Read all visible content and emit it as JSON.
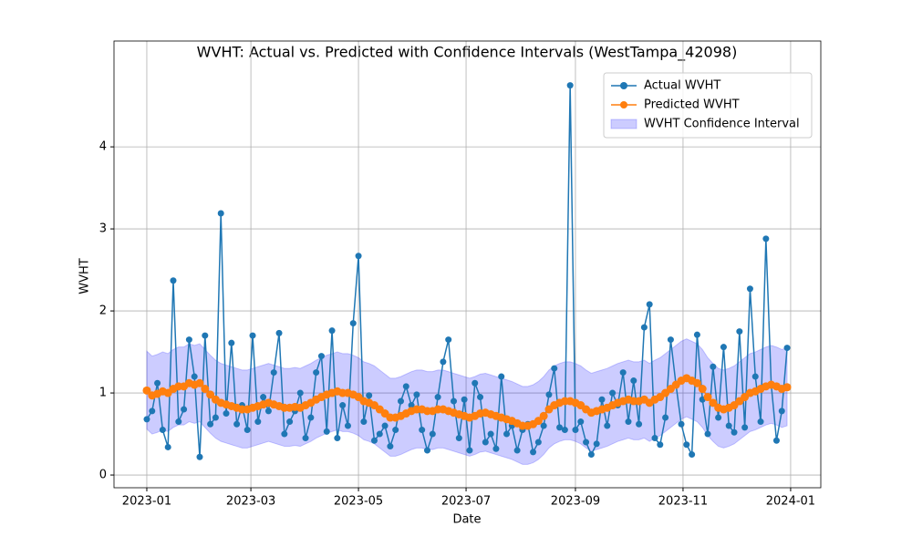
{
  "chart_data": {
    "type": "line",
    "title": "WVHT: Actual vs. Predicted with Confidence Intervals (WestTampa_42098)",
    "xlabel": "Date",
    "ylabel": "WVHT",
    "grid": true,
    "legend": "upper right",
    "xlim": [
      -18.6,
      382.1
    ],
    "ylim": [
      -0.155,
      5.29
    ],
    "xticks": [
      {
        "value": 0,
        "label": "2023-01"
      },
      {
        "value": 59,
        "label": "2023-03"
      },
      {
        "value": 120,
        "label": "2023-05"
      },
      {
        "value": 181,
        "label": "2023-07"
      },
      {
        "value": 243,
        "label": "2023-09"
      },
      {
        "value": 304,
        "label": "2023-11"
      },
      {
        "value": 365,
        "label": "2024-01"
      }
    ],
    "yticks": [
      0,
      1,
      2,
      3,
      4
    ],
    "x": [
      0,
      3,
      6,
      9,
      12,
      15,
      18,
      21,
      24,
      27,
      30,
      33,
      36,
      39,
      42,
      45,
      48,
      51,
      54,
      57,
      60,
      63,
      66,
      69,
      72,
      75,
      78,
      81,
      84,
      87,
      90,
      93,
      96,
      99,
      102,
      105,
      108,
      111,
      114,
      117,
      120,
      123,
      126,
      129,
      132,
      135,
      138,
      141,
      144,
      147,
      150,
      153,
      156,
      159,
      162,
      165,
      168,
      171,
      174,
      177,
      180,
      183,
      186,
      189,
      192,
      195,
      198,
      201,
      204,
      207,
      210,
      213,
      216,
      219,
      222,
      225,
      228,
      231,
      234,
      237,
      240,
      243,
      246,
      249,
      252,
      255,
      258,
      261,
      264,
      267,
      270,
      273,
      276,
      279,
      282,
      285,
      288,
      291,
      294,
      297,
      300,
      303,
      306,
      309,
      312,
      315,
      318,
      321,
      324,
      327,
      330,
      333,
      336,
      339,
      342,
      345,
      348,
      351,
      354,
      357,
      360,
      363
    ],
    "series": [
      {
        "name": "Actual WVHT",
        "color": "#1f77b4",
        "values": [
          0.68,
          0.78,
          1.12,
          0.55,
          0.34,
          2.37,
          0.65,
          0.8,
          1.65,
          1.2,
          0.22,
          1.7,
          0.62,
          0.7,
          3.19,
          0.75,
          1.61,
          0.62,
          0.85,
          0.55,
          1.7,
          0.65,
          0.95,
          0.78,
          1.25,
          1.73,
          0.5,
          0.65,
          0.78,
          1.0,
          0.45,
          0.7,
          1.25,
          1.45,
          0.53,
          1.76,
          0.45,
          0.85,
          0.6,
          1.85,
          2.67,
          0.65,
          0.97,
          0.42,
          0.5,
          0.6,
          0.35,
          0.55,
          0.9,
          1.08,
          0.85,
          0.98,
          0.55,
          0.3,
          0.5,
          0.95,
          1.38,
          1.65,
          0.9,
          0.45,
          0.92,
          0.3,
          1.12,
          0.95,
          0.4,
          0.5,
          0.32,
          1.2,
          0.5,
          0.6,
          0.3,
          0.55,
          0.62,
          0.28,
          0.4,
          0.6,
          0.98,
          1.3,
          0.58,
          0.55,
          4.75,
          0.55,
          0.65,
          0.4,
          0.25,
          0.38,
          0.92,
          0.6,
          1.0,
          0.85,
          1.25,
          0.65,
          1.15,
          0.62,
          1.8,
          2.08,
          0.45,
          0.37,
          0.7,
          1.65,
          1.1,
          0.62,
          0.37,
          0.25,
          1.71,
          0.92,
          0.5,
          1.32,
          0.7,
          1.56,
          0.6,
          0.52,
          1.75,
          0.58,
          2.27,
          1.2,
          0.65,
          2.88,
          1.1,
          0.42,
          0.78,
          1.55
        ]
      },
      {
        "name": "Predicted WVHT",
        "color": "#ff7f0e",
        "values": [
          1.03,
          0.97,
          0.99,
          1.02,
          1.0,
          1.05,
          1.08,
          1.08,
          1.12,
          1.1,
          1.12,
          1.05,
          0.98,
          0.92,
          0.88,
          0.86,
          0.84,
          0.82,
          0.8,
          0.8,
          0.82,
          0.84,
          0.86,
          0.88,
          0.86,
          0.84,
          0.82,
          0.82,
          0.83,
          0.82,
          0.85,
          0.88,
          0.92,
          0.95,
          0.98,
          1.0,
          1.02,
          1.0,
          1.0,
          0.98,
          0.95,
          0.9,
          0.88,
          0.85,
          0.8,
          0.75,
          0.7,
          0.7,
          0.72,
          0.75,
          0.78,
          0.8,
          0.8,
          0.78,
          0.78,
          0.8,
          0.8,
          0.78,
          0.76,
          0.74,
          0.72,
          0.7,
          0.72,
          0.75,
          0.76,
          0.74,
          0.72,
          0.7,
          0.68,
          0.66,
          0.63,
          0.6,
          0.6,
          0.62,
          0.66,
          0.72,
          0.8,
          0.85,
          0.88,
          0.9,
          0.9,
          0.88,
          0.85,
          0.8,
          0.76,
          0.78,
          0.8,
          0.82,
          0.85,
          0.88,
          0.9,
          0.92,
          0.9,
          0.9,
          0.92,
          0.88,
          0.92,
          0.95,
          1.0,
          1.05,
          1.1,
          1.15,
          1.18,
          1.15,
          1.12,
          1.05,
          0.95,
          0.88,
          0.82,
          0.8,
          0.82,
          0.85,
          0.9,
          0.95,
          1.0,
          1.02,
          1.05,
          1.08,
          1.1,
          1.08,
          1.05,
          1.07
        ]
      }
    ],
    "interval": {
      "name": "WVHT Confidence Interval",
      "color": "#0000ff",
      "upper": [
        1.51,
        1.45,
        1.47,
        1.5,
        1.48,
        1.53,
        1.56,
        1.56,
        1.6,
        1.58,
        1.6,
        1.53,
        1.46,
        1.4,
        1.36,
        1.34,
        1.32,
        1.3,
        1.28,
        1.28,
        1.3,
        1.32,
        1.34,
        1.36,
        1.34,
        1.32,
        1.3,
        1.3,
        1.31,
        1.3,
        1.33,
        1.36,
        1.4,
        1.43,
        1.46,
        1.48,
        1.5,
        1.48,
        1.48,
        1.46,
        1.43,
        1.38,
        1.36,
        1.33,
        1.28,
        1.23,
        1.18,
        1.18,
        1.2,
        1.23,
        1.26,
        1.28,
        1.28,
        1.26,
        1.26,
        1.28,
        1.28,
        1.26,
        1.24,
        1.22,
        1.2,
        1.18,
        1.2,
        1.23,
        1.24,
        1.22,
        1.2,
        1.18,
        1.16,
        1.14,
        1.11,
        1.08,
        1.08,
        1.1,
        1.14,
        1.2,
        1.28,
        1.33,
        1.36,
        1.38,
        1.38,
        1.36,
        1.33,
        1.28,
        1.24,
        1.26,
        1.28,
        1.3,
        1.33,
        1.36,
        1.38,
        1.4,
        1.38,
        1.38,
        1.4,
        1.36,
        1.4,
        1.43,
        1.48,
        1.53,
        1.58,
        1.63,
        1.66,
        1.63,
        1.6,
        1.53,
        1.43,
        1.36,
        1.3,
        1.28,
        1.3,
        1.33,
        1.38,
        1.43,
        1.48,
        1.5,
        1.53,
        1.56,
        1.58,
        1.56,
        1.53,
        1.55
      ],
      "lower": [
        0.56,
        0.5,
        0.52,
        0.55,
        0.53,
        0.58,
        0.61,
        0.61,
        0.65,
        0.63,
        0.65,
        0.58,
        0.51,
        0.45,
        0.41,
        0.39,
        0.37,
        0.35,
        0.33,
        0.33,
        0.35,
        0.37,
        0.39,
        0.41,
        0.39,
        0.37,
        0.35,
        0.35,
        0.36,
        0.35,
        0.38,
        0.41,
        0.45,
        0.48,
        0.51,
        0.53,
        0.55,
        0.53,
        0.53,
        0.51,
        0.48,
        0.43,
        0.41,
        0.38,
        0.33,
        0.28,
        0.23,
        0.23,
        0.25,
        0.28,
        0.31,
        0.33,
        0.33,
        0.31,
        0.31,
        0.33,
        0.33,
        0.31,
        0.29,
        0.27,
        0.25,
        0.23,
        0.25,
        0.28,
        0.29,
        0.27,
        0.25,
        0.23,
        0.21,
        0.19,
        0.16,
        0.13,
        0.13,
        0.15,
        0.19,
        0.25,
        0.33,
        0.38,
        0.41,
        0.43,
        0.43,
        0.41,
        0.38,
        0.33,
        0.29,
        0.31,
        0.33,
        0.35,
        0.38,
        0.41,
        0.43,
        0.45,
        0.43,
        0.43,
        0.45,
        0.41,
        0.45,
        0.48,
        0.53,
        0.58,
        0.63,
        0.68,
        0.71,
        0.68,
        0.65,
        0.58,
        0.48,
        0.41,
        0.35,
        0.33,
        0.35,
        0.38,
        0.43,
        0.48,
        0.53,
        0.55,
        0.58,
        0.61,
        0.63,
        0.61,
        0.58,
        0.6
      ]
    }
  }
}
